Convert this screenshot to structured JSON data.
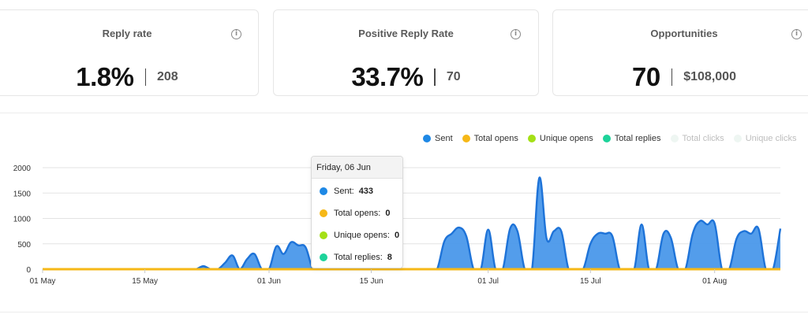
{
  "cards": [
    {
      "title": "Reply rate",
      "value": "1.8%",
      "sub": "208"
    },
    {
      "title": "Positive Reply Rate",
      "value": "33.7%",
      "sub": "70"
    },
    {
      "title": "Opportunities",
      "value": "70",
      "sub": "$108,000"
    }
  ],
  "info_icon_glyph": "i",
  "legend": [
    {
      "label": "Sent",
      "color": "#1e88e5",
      "active": true
    },
    {
      "label": "Total opens",
      "color": "#f6b817",
      "active": true
    },
    {
      "label": "Unique opens",
      "color": "#a4e016",
      "active": true
    },
    {
      "label": "Total replies",
      "color": "#1dd39a",
      "active": true
    },
    {
      "label": "Total clicks",
      "color": "#e8f3ee",
      "active": false
    },
    {
      "label": "Unique clicks",
      "color": "#e8f3ee",
      "active": false
    }
  ],
  "tooltip": {
    "date": "Friday, 06 Jun",
    "rows": [
      {
        "label": "Sent:",
        "value": "433",
        "color": "#1e88e5"
      },
      {
        "label": "Total opens:",
        "value": "0",
        "color": "#f6b817"
      },
      {
        "label": "Unique opens:",
        "value": "0",
        "color": "#a4e016"
      },
      {
        "label": "Total replies:",
        "value": "8",
        "color": "#1dd39a"
      }
    ]
  },
  "chart_data": {
    "type": "area",
    "y_ticks": [
      "0",
      "500",
      "1000",
      "1500",
      "2000"
    ],
    "ylim": [
      0,
      2000
    ],
    "x_tick_labels": [
      "01 May",
      "15 May",
      "01 Jun",
      "15 Jun",
      "01 Jul",
      "15 Jul",
      "01 Aug"
    ],
    "x_tick_dates": [
      "2025-05-01",
      "2025-05-15",
      "2025-06-01",
      "2025-06-15",
      "2025-07-01",
      "2025-07-15",
      "2025-08-01"
    ],
    "grid": true,
    "legend_position": "top-right",
    "series": [
      {
        "name": "Sent",
        "color": "#1e88e5",
        "x": [
          "2025-05-01",
          "2025-05-02",
          "2025-05-03",
          "2025-05-04",
          "2025-05-05",
          "2025-05-06",
          "2025-05-07",
          "2025-05-08",
          "2025-05-09",
          "2025-05-10",
          "2025-05-11",
          "2025-05-12",
          "2025-05-13",
          "2025-05-14",
          "2025-05-15",
          "2025-05-16",
          "2025-05-17",
          "2025-05-18",
          "2025-05-19",
          "2025-05-20",
          "2025-05-21",
          "2025-05-22",
          "2025-05-23",
          "2025-05-24",
          "2025-05-25",
          "2025-05-26",
          "2025-05-27",
          "2025-05-28",
          "2025-05-29",
          "2025-05-30",
          "2025-05-31",
          "2025-06-01",
          "2025-06-02",
          "2025-06-03",
          "2025-06-04",
          "2025-06-05",
          "2025-06-06",
          "2025-06-07",
          "2025-06-08",
          "2025-06-09",
          "2025-06-10",
          "2025-06-11",
          "2025-06-12",
          "2025-06-13",
          "2025-06-14",
          "2025-06-15",
          "2025-06-16",
          "2025-06-17",
          "2025-06-18",
          "2025-06-19",
          "2025-06-20",
          "2025-06-21",
          "2025-06-22",
          "2025-06-23",
          "2025-06-24",
          "2025-06-25",
          "2025-06-26",
          "2025-06-27",
          "2025-06-28",
          "2025-06-29",
          "2025-06-30",
          "2025-07-01",
          "2025-07-02",
          "2025-07-03",
          "2025-07-04",
          "2025-07-05",
          "2025-07-06",
          "2025-07-07",
          "2025-07-08",
          "2025-07-09",
          "2025-07-10",
          "2025-07-11",
          "2025-07-12",
          "2025-07-13",
          "2025-07-14",
          "2025-07-15",
          "2025-07-16",
          "2025-07-17",
          "2025-07-18",
          "2025-07-19",
          "2025-07-20",
          "2025-07-21",
          "2025-07-22",
          "2025-07-23",
          "2025-07-24",
          "2025-07-25",
          "2025-07-26",
          "2025-07-27",
          "2025-07-28",
          "2025-07-29",
          "2025-07-30",
          "2025-07-31",
          "2025-08-01",
          "2025-08-02",
          "2025-08-03",
          "2025-08-04",
          "2025-08-05",
          "2025-08-06",
          "2025-08-07",
          "2025-08-08",
          "2025-08-09",
          "2025-08-10"
        ],
        "values": [
          0,
          0,
          0,
          0,
          0,
          0,
          0,
          0,
          0,
          0,
          0,
          0,
          0,
          0,
          0,
          0,
          0,
          0,
          0,
          0,
          0,
          0,
          60,
          0,
          0,
          130,
          270,
          0,
          200,
          300,
          0,
          0,
          450,
          300,
          530,
          470,
          433,
          0,
          0,
          560,
          600,
          550,
          400,
          0,
          0,
          0,
          560,
          0,
          550,
          0,
          0,
          0,
          0,
          0,
          0,
          550,
          700,
          820,
          650,
          0,
          0,
          780,
          0,
          0,
          800,
          750,
          0,
          0,
          1800,
          600,
          750,
          750,
          0,
          0,
          0,
          500,
          700,
          700,
          650,
          0,
          0,
          0,
          880,
          0,
          0,
          700,
          620,
          0,
          0,
          700,
          950,
          880,
          900,
          0,
          0,
          600,
          750,
          700,
          800,
          0,
          0,
          800
        ]
      },
      {
        "name": "Total opens",
        "color": "#f6b817",
        "value": 0
      }
    ]
  }
}
